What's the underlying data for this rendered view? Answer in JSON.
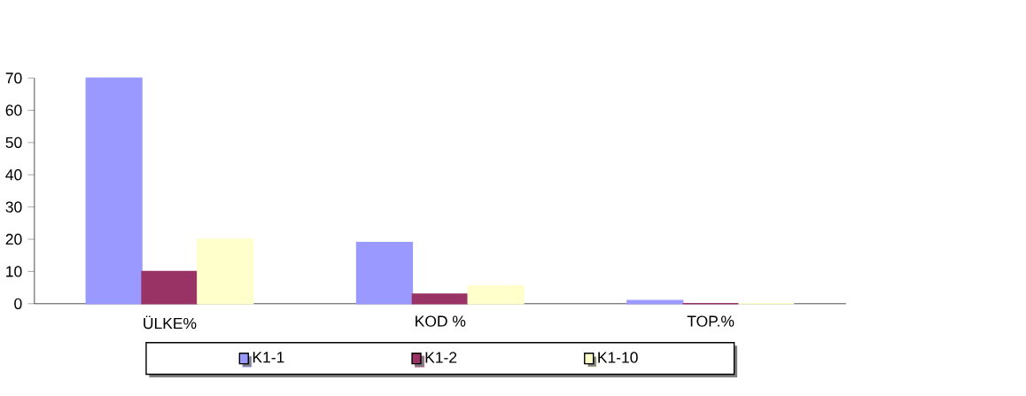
{
  "chart_data": {
    "type": "bar",
    "categories": [
      "ÜLKE%",
      "KOD %",
      "TOP.%"
    ],
    "series": [
      {
        "name": "K1-1",
        "color": "#9999ff",
        "values": [
          70,
          19,
          1
        ]
      },
      {
        "name": "K1-2",
        "color": "#993366",
        "values": [
          10,
          3,
          0
        ]
      },
      {
        "name": "K1-10",
        "color": "#ffffcc",
        "values": [
          20,
          5.5,
          0
        ]
      }
    ],
    "ylim": [
      0,
      70
    ],
    "yticks": [
      0,
      10,
      20,
      30,
      40,
      50,
      60,
      70
    ],
    "legend": "bottom"
  }
}
